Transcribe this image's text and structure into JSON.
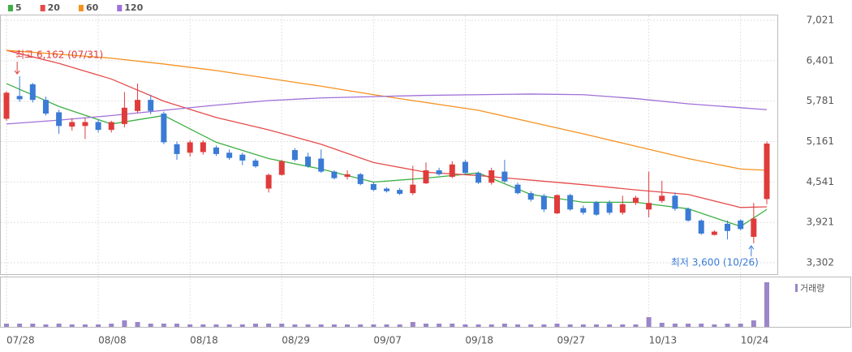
{
  "chart_data": {
    "type": "candlestick",
    "legend": [
      {
        "name": "5",
        "color": "#3cb043"
      },
      {
        "name": "20",
        "color": "#e64b4b"
      },
      {
        "name": "60",
        "color": "#f5911e"
      },
      {
        "name": "120",
        "color": "#a070d8"
      }
    ],
    "categories": [
      "07/28",
      null,
      null,
      null,
      null,
      null,
      null,
      "08/08",
      null,
      null,
      null,
      null,
      null,
      null,
      "08/18",
      null,
      null,
      null,
      null,
      null,
      null,
      "08/29",
      null,
      null,
      null,
      null,
      null,
      null,
      "09/07",
      null,
      null,
      null,
      null,
      null,
      null,
      "09/18",
      null,
      null,
      null,
      null,
      null,
      null,
      "09/27",
      null,
      null,
      null,
      null,
      null,
      null,
      "10/13",
      null,
      null,
      null,
      null,
      null,
      null,
      "10/24",
      null,
      null
    ],
    "open": [
      5510,
      5860,
      6040,
      5800,
      5610,
      5390,
      5400,
      5460,
      5340,
      5430,
      5630,
      5800,
      5590,
      5120,
      4990,
      5000,
      5070,
      4990,
      4960,
      4870,
      4440,
      4650,
      5030,
      4930,
      4900,
      4700,
      4620,
      4660,
      4510,
      4440,
      4420,
      4370,
      4520,
      4720,
      4620,
      4850,
      4680,
      4530,
      4700,
      4500,
      4370,
      4330,
      4060,
      4340,
      4140,
      4230,
      4220,
      4070,
      4220,
      4120,
      4250,
      4330,
      4130,
      3950,
      3730,
      3900,
      3950,
      3700,
      4280
    ],
    "high": [
      5930,
      6162,
      6060,
      5850,
      5650,
      5520,
      5520,
      5500,
      5480,
      5920,
      6050,
      5880,
      5620,
      5160,
      5180,
      5180,
      5100,
      5040,
      4990,
      4900,
      4670,
      4880,
      5060,
      4990,
      5040,
      4720,
      4720,
      4680,
      4540,
      4460,
      4450,
      4790,
      4840,
      4760,
      4860,
      4880,
      4700,
      4760,
      4880,
      4530,
      4400,
      4360,
      4350,
      4360,
      4180,
      4250,
      4260,
      4330,
      4330,
      4700,
      4560,
      4380,
      4150,
      3970,
      3800,
      3950,
      3970,
      4220,
      5161
    ],
    "low": [
      5480,
      5770,
      5760,
      5560,
      5280,
      5330,
      5200,
      5300,
      5300,
      5380,
      5600,
      5580,
      5120,
      4880,
      4930,
      4960,
      4940,
      4880,
      4800,
      4760,
      4380,
      4640,
      4860,
      4760,
      4680,
      4580,
      4580,
      4490,
      4400,
      4380,
      4340,
      4340,
      4510,
      4640,
      4600,
      4660,
      4510,
      4500,
      4530,
      4350,
      4240,
      4080,
      4050,
      4100,
      4040,
      4020,
      4040,
      4040,
      4190,
      4000,
      4220,
      4100,
      3930,
      3730,
      3720,
      3660,
      3800,
      3600,
      4200
    ],
    "close": [
      5910,
      5810,
      5800,
      5590,
      5400,
      5460,
      5460,
      5340,
      5460,
      5680,
      5800,
      5630,
      5150,
      4970,
      5150,
      5150,
      4970,
      4910,
      4870,
      4780,
      4650,
      4860,
      4880,
      4780,
      4700,
      4600,
      4660,
      4510,
      4420,
      4400,
      4360,
      4500,
      4720,
      4660,
      4810,
      4680,
      4530,
      4720,
      4550,
      4370,
      4270,
      4120,
      4340,
      4120,
      4070,
      4040,
      4070,
      4200,
      4300,
      4220,
      4330,
      4130,
      3950,
      3750,
      3780,
      3790,
      3820,
      3980,
      5130
    ],
    "up_color": "#e03b3b",
    "down_color": "#3a7bd5",
    "moving_averages": [
      {
        "name": "5",
        "color": "#3cb043",
        "x": [
          0,
          4,
          8,
          12,
          16,
          20,
          24,
          28,
          32,
          36,
          40,
          44,
          48,
          52,
          56,
          58
        ],
        "values": [
          6050,
          5700,
          5430,
          5560,
          5150,
          4900,
          4740,
          4540,
          4600,
          4680,
          4350,
          4230,
          4230,
          4130,
          3860,
          4120
        ]
      },
      {
        "name": "20",
        "color": "#e64b4b",
        "x": [
          0,
          4,
          8,
          12,
          16,
          20,
          24,
          28,
          32,
          36,
          40,
          44,
          48,
          52,
          56,
          58
        ],
        "values": [
          6560,
          6360,
          6120,
          5780,
          5530,
          5340,
          5120,
          4840,
          4690,
          4640,
          4570,
          4500,
          4420,
          4350,
          4150,
          4160
        ]
      },
      {
        "name": "60",
        "color": "#f5911e",
        "x": [
          0,
          4,
          8,
          12,
          16,
          20,
          24,
          28,
          32,
          36,
          40,
          44,
          48,
          52,
          56,
          58
        ],
        "values": [
          6560,
          6500,
          6440,
          6350,
          6250,
          6130,
          6010,
          5880,
          5760,
          5640,
          5460,
          5280,
          5090,
          4900,
          4740,
          4720
        ]
      },
      {
        "name": "120",
        "color": "#a070d8",
        "x": [
          0,
          4,
          8,
          12,
          16,
          20,
          24,
          28,
          32,
          36,
          40,
          44,
          48,
          52,
          56,
          58
        ],
        "values": [
          5430,
          5490,
          5560,
          5640,
          5720,
          5790,
          5830,
          5850,
          5870,
          5880,
          5890,
          5880,
          5820,
          5740,
          5680,
          5650
        ]
      }
    ],
    "ylim": [
      3302,
      7021
    ],
    "yticks": [
      {
        "value": 3302,
        "label": "3,302"
      },
      {
        "value": 3921,
        "label": "3,921"
      },
      {
        "value": 4541,
        "label": "4,541"
      },
      {
        "value": 5161,
        "label": "5,161"
      },
      {
        "value": 5781,
        "label": "5,781"
      },
      {
        "value": 6401,
        "label": "6,401"
      },
      {
        "value": 7021,
        "label": "7,021"
      }
    ],
    "volume_label": "거래량",
    "volume_color": "#9b86c9",
    "volume": [
      4,
      4,
      4,
      3,
      4,
      3,
      3,
      3,
      4,
      8,
      6,
      4,
      4,
      4,
      3,
      3,
      3,
      3,
      3,
      4,
      4,
      4,
      3,
      3,
      3,
      3,
      3,
      3,
      3,
      3,
      3,
      6,
      4,
      4,
      4,
      3,
      3,
      3,
      4,
      3,
      3,
      3,
      4,
      3,
      3,
      3,
      3,
      3,
      3,
      12,
      5,
      4,
      4,
      4,
      3,
      4,
      4,
      8,
      55
    ],
    "volume_lim": [
      0,
      60
    ],
    "annotations": [
      {
        "text": "최고 6,162 (07/31)",
        "index": 1,
        "value": 6162
      },
      {
        "text": "최저 3,600 (10/26)",
        "index": 57,
        "value": 3600
      }
    ],
    "grid": true
  }
}
